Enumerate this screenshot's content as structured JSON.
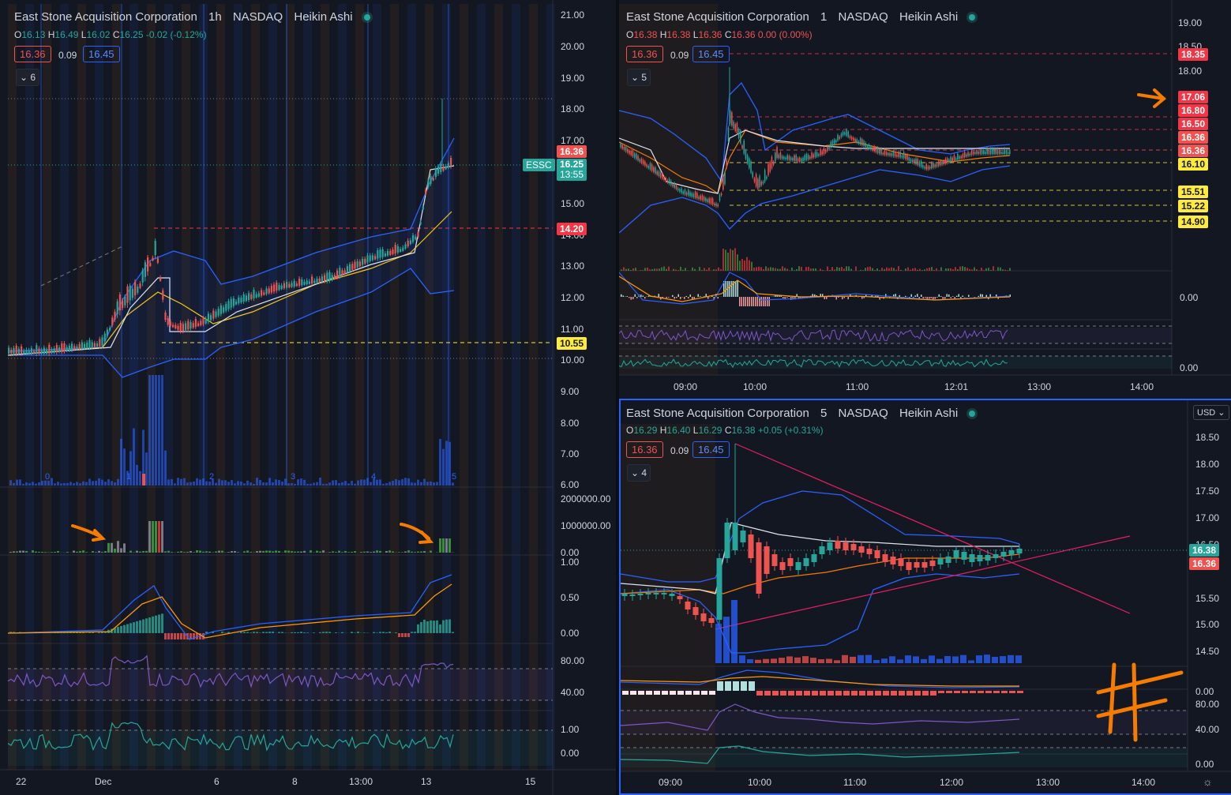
{
  "symbol": "East Stone Acquisition Corporation",
  "exchange": "NASDAQ",
  "chart_style": "Heikin Ashi",
  "colors": {
    "up": "#26a69a",
    "down": "#ef5350",
    "accent": "#2962ff",
    "bg": "#131722",
    "orange": "#f57c00",
    "magenta": "#e91e63",
    "yellow": "#ffeb3b"
  },
  "left": {
    "interval": "1h",
    "ohlc": {
      "o": "16.13",
      "h": "16.49",
      "l": "16.02",
      "c": "16.25",
      "chg": "-0.02 (-0.12%)"
    },
    "bid": "16.36",
    "spread": "0.09",
    "ask": "16.45",
    "indicator_count": "6",
    "price_axis": [
      "21.00",
      "20.00",
      "19.00",
      "18.00",
      "17.00",
      "15.00",
      "14.00",
      "13.00",
      "12.00",
      "11.00",
      "10.00",
      "9.00",
      "8.00",
      "7.00",
      "6.00"
    ],
    "tags": {
      "t1": "16.36",
      "ticker": "ESSC",
      "last": "16.25",
      "countdown": "13:55",
      "t2": "14.20",
      "t3": "10.55"
    },
    "session_nums": [
      "0",
      "1",
      "2",
      "3",
      "4",
      "5"
    ],
    "vol_axis": [
      "2000000.00",
      "1000000.00",
      "0.00"
    ],
    "osc_axis": [
      "1.00",
      "0.50",
      "0.00"
    ],
    "rsi_axis": [
      "80.00",
      "40.00"
    ],
    "bot_axis": [
      "1.00",
      "0.00"
    ],
    "time_axis": [
      "22",
      "Dec",
      "6",
      "8",
      "13:00",
      "13",
      "15"
    ]
  },
  "right_top": {
    "interval": "1",
    "ohlc": {
      "o": "16.38",
      "h": "16.38",
      "l": "16.36",
      "c": "16.36",
      "chg": "0.00 (0.00%)"
    },
    "bid": "16.36",
    "spread": "0.09",
    "ask": "16.45",
    "indicator_count": "5",
    "price_axis": [
      "19.00",
      "18.50",
      "18.00"
    ],
    "tags": [
      "18.35",
      "17.06",
      "16.80",
      "16.50",
      "16.36",
      "16.36",
      "16.10",
      "15.51",
      "15.22",
      "14.90"
    ],
    "osc_axis": [
      "0.00"
    ],
    "bot_axis": [
      "0.00"
    ],
    "time_axis": [
      "09:00",
      "10:00",
      "11:00",
      "12:01",
      "13:00",
      "14:00"
    ]
  },
  "right_bot": {
    "interval": "5",
    "ohlc": {
      "o": "16.29",
      "h": "16.40",
      "l": "16.29",
      "c": "16.38",
      "chg": "+0.05 (+0.31%)"
    },
    "bid": "16.36",
    "spread": "0.09",
    "ask": "16.45",
    "indicator_count": "4",
    "currency": "USD",
    "price_axis": [
      "18.50",
      "18.00",
      "17.50",
      "17.00",
      "16.50",
      "15.50",
      "15.00",
      "14.50"
    ],
    "tags": {
      "last": "16.38",
      "bid": "16.36"
    },
    "osc_axis": [
      "0.00"
    ],
    "rsi_axis": [
      "80.00",
      "40.00"
    ],
    "bot_axis": [
      "0.00"
    ],
    "time_axis": [
      "09:00",
      "10:00",
      "11:00",
      "12:00",
      "13:00",
      "14:00"
    ]
  }
}
